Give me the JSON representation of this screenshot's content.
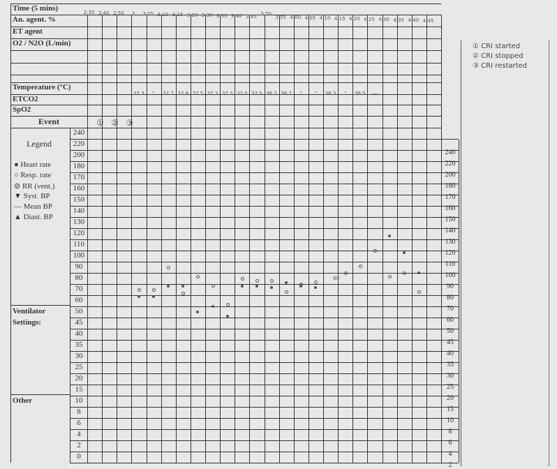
{
  "form": {
    "row_labels": [
      "Time (5 mins)",
      "An. agent. %",
      "ET agent",
      "O2 / N2O (L/min)",
      "Temperature (°C)",
      "ETCO2",
      "SpO2",
      "Event"
    ],
    "legend_title": "Legend",
    "legend_items": [
      "● Heart rate",
      "○ Resp. rate",
      "⊘ RR (vent.)",
      "▼ Syst. BP",
      "— Mean BP",
      "▲ Diast. BP"
    ],
    "section_labels": [
      "Ventilator",
      "Settings:",
      "Other"
    ],
    "scale": [
      "240",
      "220",
      "200",
      "180",
      "170",
      "160",
      "150",
      "140",
      "130",
      "120",
      "110",
      "100",
      "90",
      "80",
      "70",
      "60",
      "50",
      "45",
      "40",
      "35",
      "30",
      "25",
      "20",
      "15",
      "10",
      "8",
      "6",
      "4",
      "2",
      "0"
    ]
  },
  "handwritten": {
    "times": [
      "2:35",
      "2:40",
      "2:50",
      "3",
      "3:05",
      "3:10",
      "3:15",
      "3:20",
      "3:30",
      "3:35",
      "3:40",
      "3:45",
      "3:50",
      "3:55",
      "4:00",
      "4:05",
      "4:10",
      "4:15",
      "4:20",
      "4:25",
      "4:30",
      "4:35",
      "4:40",
      "4:45"
    ],
    "temperature": [
      "",
      "",
      "",
      "37.3",
      "\"",
      "37.7",
      "37.6",
      "37.5",
      "37.3",
      "37.3",
      "37.0",
      "37.0",
      "36.7",
      "36.7",
      "\"",
      "\"",
      "36.3",
      "\"",
      "36.5",
      "—",
      "",
      "",
      "",
      ""
    ],
    "events": [
      "①",
      "②",
      "③"
    ],
    "notes": [
      "① CRI started",
      "② CRI stopped",
      "③ CRI restarted"
    ],
    "inline_note": "80"
  },
  "chart_data": {
    "type": "scatter",
    "series": [
      {
        "name": "Heart rate",
        "marker": "filled-dot",
        "x": [
          "3",
          "3:05",
          "3:10",
          "3:15",
          "3:20",
          "3:30",
          "3:35",
          "3:40",
          "3:45",
          "3:50",
          "3:55",
          "4:00",
          "4:05",
          "4:30",
          "4:35",
          "4:40"
        ],
        "values": [
          64,
          64,
          73,
          73,
          50,
          55,
          48,
          73,
          73,
          72,
          76,
          73,
          72,
          118,
          103,
          85
        ]
      },
      {
        "name": "Resp. rate",
        "marker": "open-circle",
        "x": [
          "3",
          "3:05",
          "3:10",
          "3:15",
          "3:20",
          "3:30",
          "3:35",
          "3:40",
          "3:45",
          "3:50",
          "3:55",
          "4:00",
          "4:05",
          "4:15",
          "4:20",
          "4:25",
          "4:30",
          "4:35",
          "4:40"
        ],
        "values": [
          70,
          70,
          90,
          67,
          82,
          74,
          57,
          80,
          78,
          78,
          68,
          75,
          77,
          85,
          91,
          105,
          82,
          85,
          68
        ]
      }
    ]
  }
}
